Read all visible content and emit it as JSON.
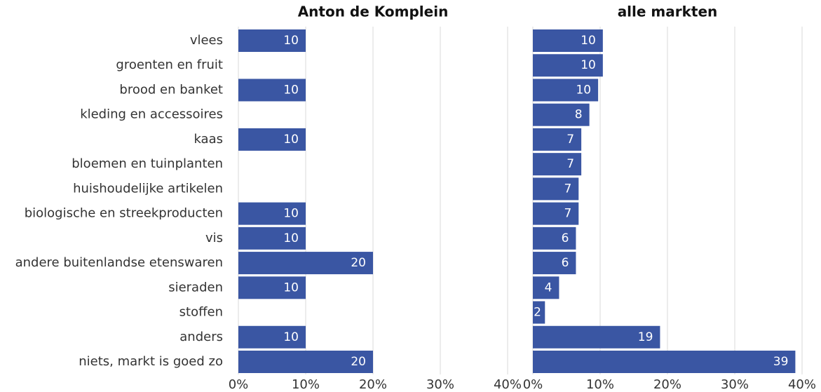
{
  "chart_data": [
    {
      "type": "barh",
      "title": "Anton de Komplein",
      "categories": [
        "vlees",
        "groenten en fruit",
        "brood en banket",
        "kleding en accessoires",
        "kaas",
        "bloemen en tuinplanten",
        "huishoudelijke artikelen",
        "biologische en streekproducten",
        "vis",
        "andere buitenlandse etenswaren",
        "sieraden",
        "stoffen",
        "anders",
        "niets, markt is goed zo"
      ],
      "values": [
        10,
        null,
        10,
        null,
        10,
        null,
        null,
        10,
        10,
        20,
        10,
        null,
        10,
        20
      ],
      "color": "#3a56a3",
      "grid": true,
      "xlim": [
        0,
        40
      ],
      "xticks": [
        {
          "value": 0,
          "label": "0%"
        },
        {
          "value": 10,
          "label": "10%"
        },
        {
          "value": 20,
          "label": "20%"
        },
        {
          "value": 30,
          "label": "30%"
        },
        {
          "value": 40,
          "label": "40%"
        }
      ]
    },
    {
      "type": "barh",
      "title": "alle markten",
      "values": [
        10.4,
        10.4,
        9.7,
        8.4,
        7.2,
        7.2,
        6.8,
        6.8,
        6.4,
        6.4,
        3.9,
        1.8,
        18.9,
        39
      ],
      "value_labels": [
        "10",
        "10",
        "10",
        "8",
        "7",
        "7",
        "7",
        "7",
        "6",
        "6",
        "4",
        "2",
        "19",
        "39"
      ],
      "color": "#3a56a3",
      "grid": true,
      "xlim": [
        0,
        40
      ],
      "xticks": [
        {
          "value": 0,
          "label": "0%"
        },
        {
          "value": 10,
          "label": "10%"
        },
        {
          "value": 20,
          "label": "20%"
        },
        {
          "value": 30,
          "label": "30%"
        },
        {
          "value": 40,
          "label": "40%"
        }
      ]
    }
  ]
}
